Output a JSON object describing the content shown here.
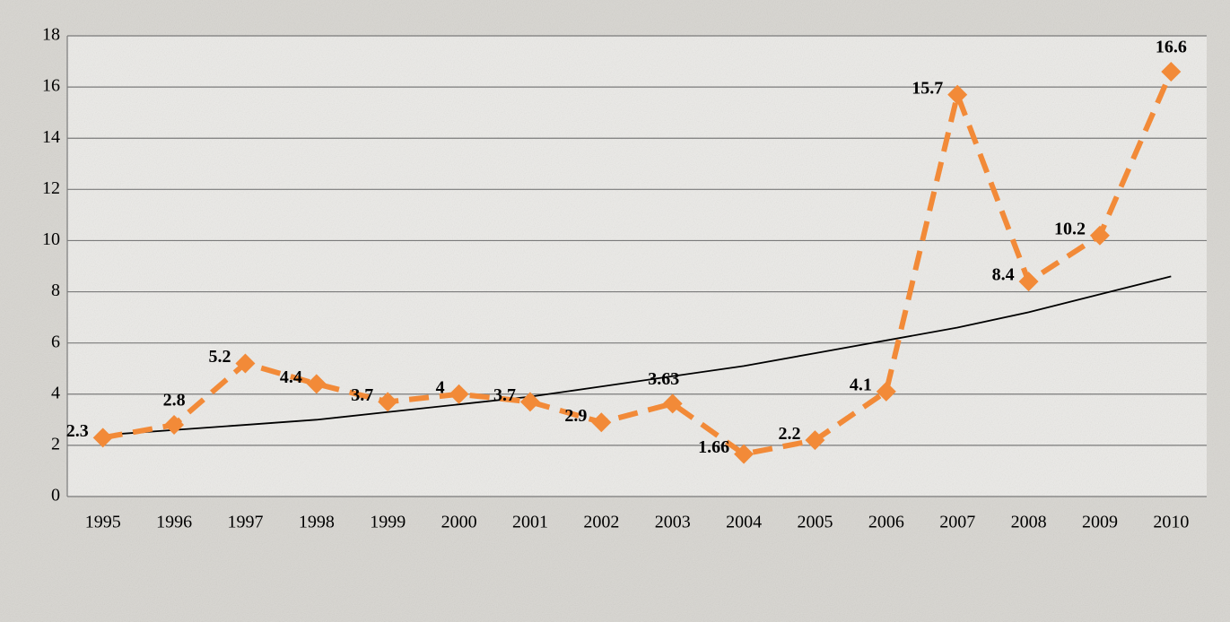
{
  "chart_data": {
    "type": "line",
    "categories": [
      "1995",
      "1996",
      "1997",
      "1998",
      "1999",
      "2000",
      "2001",
      "2002",
      "2003",
      "2004",
      "2005",
      "2006",
      "2007",
      "2008",
      "2009",
      "2010"
    ],
    "series": [
      {
        "color": "#f28a38",
        "values": [
          2.3,
          2.8,
          5.2,
          4.4,
          3.7,
          4,
          3.7,
          2.9,
          3.63,
          1.66,
          2.2,
          4.1,
          15.7,
          8.4,
          10.2,
          16.6
        ]
      },
      {
        "color": "#000000",
        "values": [
          2.4,
          2.6,
          2.8,
          3.0,
          3.3,
          3.6,
          3.9,
          4.3,
          4.7,
          5.1,
          5.6,
          6.1,
          6.6,
          7.2,
          7.9,
          8.6
        ]
      }
    ],
    "ylim": [
      0,
      18
    ],
    "yticks": [
      0,
      2,
      4,
      6,
      8,
      10,
      12,
      14,
      16,
      18
    ],
    "grid": true
  }
}
